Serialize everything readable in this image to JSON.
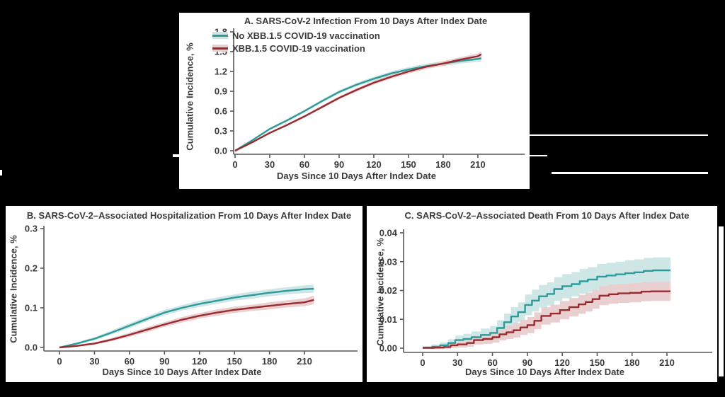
{
  "colors": {
    "background": "#000000",
    "panel": "#ffffff",
    "text": "#3b3b3b",
    "axis": "#58585a"
  },
  "legend": {
    "items": [
      {
        "label": "No XBB.1.5 COVID-19 vaccination",
        "line": "#2d9b99",
        "band": "#cfe6e6"
      },
      {
        "label": "XBB.1.5 COVID-19 vaccination",
        "line": "#992b2e",
        "band": "#e9cfd0"
      }
    ]
  },
  "chart_data": [
    {
      "id": "A",
      "type": "line",
      "step": false,
      "title": "A. SARS-CoV-2 Infection From 10 Days After Index Date",
      "xlabel": "Days Since 10 Days After Index Date",
      "ylabel": "Cumulative Incidence, %",
      "xlim": [
        0,
        225
      ],
      "ylim": [
        0,
        1.8
      ],
      "grid": false,
      "legend_position": "top-left",
      "xticks": [
        0,
        30,
        60,
        90,
        120,
        150,
        180,
        210
      ],
      "yticks": [
        {
          "v": 0,
          "label": "0.0"
        },
        {
          "v": 0.3,
          "label": "0.3"
        },
        {
          "v": 0.6,
          "label": "0.6"
        },
        {
          "v": 0.9,
          "label": "0.9"
        },
        {
          "v": 1.2,
          "label": "1.2"
        },
        {
          "v": 1.5,
          "label": "1.5"
        },
        {
          "v": 1.8,
          "label": "1.8"
        }
      ],
      "series": [
        {
          "name": "No XBB.1.5 COVID-19 vaccination",
          "color": "#2d9b99",
          "band_color": "#cfe6e6",
          "x": [
            0,
            15,
            30,
            45,
            60,
            75,
            90,
            105,
            120,
            135,
            150,
            165,
            180,
            195,
            210,
            213
          ],
          "y": [
            0,
            0.16,
            0.33,
            0.46,
            0.6,
            0.75,
            0.89,
            1.0,
            1.09,
            1.17,
            1.23,
            1.28,
            1.32,
            1.36,
            1.39,
            1.4
          ],
          "band_hw": [
            0.004,
            0.01,
            0.015,
            0.018,
            0.02,
            0.022,
            0.025,
            0.027,
            0.03,
            0.032,
            0.034,
            0.036,
            0.038,
            0.04,
            0.045,
            0.048
          ]
        },
        {
          "name": "XBB.1.5 COVID-19 vaccination",
          "color": "#992b2e",
          "band_color": "#e9cfd0",
          "x": [
            0,
            15,
            30,
            45,
            60,
            75,
            90,
            105,
            120,
            135,
            150,
            165,
            180,
            195,
            210,
            213
          ],
          "y": [
            0,
            0.13,
            0.27,
            0.39,
            0.52,
            0.66,
            0.8,
            0.92,
            1.03,
            1.12,
            1.2,
            1.27,
            1.32,
            1.38,
            1.43,
            1.46
          ],
          "band_hw": [
            0.004,
            0.008,
            0.012,
            0.015,
            0.018,
            0.02,
            0.022,
            0.025,
            0.027,
            0.03,
            0.032,
            0.034,
            0.036,
            0.038,
            0.042,
            0.045
          ]
        }
      ]
    },
    {
      "id": "B",
      "type": "line",
      "step": false,
      "title": "B. SARS-CoV-2–Associated Hospitalization From 10 Days After Index Date",
      "xlabel": "Days Since 10 Days After Index Date",
      "ylabel": "Cumulative Incidence, %",
      "xlim": [
        0,
        225
      ],
      "ylim": [
        0,
        0.3
      ],
      "grid": false,
      "legend_position": "none",
      "xticks": [
        0,
        30,
        60,
        90,
        120,
        150,
        180,
        210
      ],
      "yticks": [
        {
          "v": 0,
          "label": "0.0"
        },
        {
          "v": 0.1,
          "label": "0.1"
        },
        {
          "v": 0.2,
          "label": "0.2"
        },
        {
          "v": 0.3,
          "label": "0.3"
        }
      ],
      "series": [
        {
          "name": "No XBB.1.5 COVID-19 vaccination",
          "color": "#2d9b99",
          "band_color": "#cfe6e6",
          "x": [
            0,
            15,
            30,
            45,
            60,
            75,
            90,
            105,
            120,
            135,
            150,
            165,
            180,
            195,
            210,
            218
          ],
          "y": [
            0,
            0.01,
            0.022,
            0.038,
            0.055,
            0.072,
            0.088,
            0.1,
            0.11,
            0.118,
            0.126,
            0.132,
            0.138,
            0.143,
            0.147,
            0.148
          ],
          "band_hw": [
            0.001,
            0.003,
            0.004,
            0.005,
            0.006,
            0.006,
            0.007,
            0.007,
            0.008,
            0.008,
            0.008,
            0.009,
            0.009,
            0.009,
            0.01,
            0.01
          ]
        },
        {
          "name": "XBB.1.5 COVID-19 vaccination",
          "color": "#992b2e",
          "band_color": "#e9cfd0",
          "x": [
            0,
            15,
            30,
            45,
            60,
            75,
            90,
            105,
            120,
            135,
            150,
            165,
            180,
            195,
            210,
            218
          ],
          "y": [
            0,
            0.004,
            0.01,
            0.02,
            0.032,
            0.045,
            0.058,
            0.07,
            0.08,
            0.088,
            0.095,
            0.1,
            0.105,
            0.11,
            0.114,
            0.12
          ],
          "band_hw": [
            0.001,
            0.002,
            0.003,
            0.004,
            0.005,
            0.006,
            0.006,
            0.007,
            0.007,
            0.008,
            0.008,
            0.008,
            0.009,
            0.009,
            0.01,
            0.011
          ]
        }
      ]
    },
    {
      "id": "C",
      "type": "line",
      "step": true,
      "title": "C. SARS-CoV-2–Associated Death From 10 Days After Index Date",
      "xlabel": "Days Since 10 Days After Index Date",
      "ylabel": "Cumulative Incidence, %",
      "xlim": [
        0,
        225
      ],
      "ylim": [
        0,
        0.04
      ],
      "grid": false,
      "legend_position": "none",
      "xticks": [
        0,
        30,
        60,
        90,
        120,
        150,
        180,
        210
      ],
      "yticks": [
        {
          "v": 0,
          "label": "0.00"
        },
        {
          "v": 0.01,
          "label": "0.01"
        },
        {
          "v": 0.02,
          "label": "0.02"
        },
        {
          "v": 0.03,
          "label": "0.03"
        },
        {
          "v": 0.04,
          "label": "0.04"
        }
      ],
      "series": [
        {
          "name": "No XBB.1.5 COVID-19 vaccination",
          "color": "#2d9b99",
          "band_color": "#cfe6e6",
          "x": [
            0,
            8,
            15,
            22,
            28,
            35,
            42,
            50,
            58,
            64,
            70,
            76,
            82,
            88,
            94,
            100,
            107,
            113,
            120,
            128,
            135,
            142,
            150,
            158,
            166,
            174,
            182,
            190,
            198,
            213
          ],
          "y": [
            0.0002,
            0.0005,
            0.001,
            0.0018,
            0.0028,
            0.0032,
            0.0038,
            0.0046,
            0.0053,
            0.007,
            0.009,
            0.011,
            0.0125,
            0.015,
            0.0165,
            0.018,
            0.0188,
            0.0205,
            0.0215,
            0.0222,
            0.0232,
            0.0238,
            0.0248,
            0.0252,
            0.0256,
            0.026,
            0.0263,
            0.0268,
            0.027,
            0.027
          ],
          "band_hw": [
            0.0005,
            0.0008,
            0.001,
            0.0013,
            0.0016,
            0.0018,
            0.002,
            0.0022,
            0.0024,
            0.0027,
            0.003,
            0.0032,
            0.0034,
            0.0036,
            0.0038,
            0.0039,
            0.004,
            0.0041,
            0.0042,
            0.0042,
            0.0043,
            0.0043,
            0.0044,
            0.0044,
            0.0044,
            0.0045,
            0.0045,
            0.0045,
            0.0045,
            0.0045
          ]
        },
        {
          "name": "XBB.1.5 COVID-19 vaccination",
          "color": "#992b2e",
          "band_color": "#e9cfd0",
          "x": [
            0,
            10,
            18,
            24,
            30,
            38,
            44,
            52,
            60,
            66,
            72,
            78,
            84,
            90,
            96,
            102,
            110,
            118,
            126,
            134,
            140,
            146,
            152,
            160,
            168,
            178,
            188,
            196,
            213
          ],
          "y": [
            0.0001,
            0.0002,
            0.0004,
            0.001,
            0.0013,
            0.0018,
            0.0028,
            0.0032,
            0.0038,
            0.0048,
            0.0055,
            0.0062,
            0.0072,
            0.008,
            0.0095,
            0.0112,
            0.012,
            0.0132,
            0.0142,
            0.0152,
            0.016,
            0.017,
            0.0182,
            0.0187,
            0.019,
            0.0192,
            0.0196,
            0.0197,
            0.0197
          ],
          "band_hw": [
            0.0003,
            0.0005,
            0.0007,
            0.0009,
            0.0011,
            0.0013,
            0.0015,
            0.0017,
            0.0019,
            0.0021,
            0.0023,
            0.0025,
            0.0026,
            0.0028,
            0.0029,
            0.003,
            0.0031,
            0.0032,
            0.0032,
            0.0033,
            0.0033,
            0.0033,
            0.0033,
            0.0033,
            0.0033,
            0.0033,
            0.0033,
            0.0033,
            0.0033
          ]
        }
      ]
    }
  ]
}
